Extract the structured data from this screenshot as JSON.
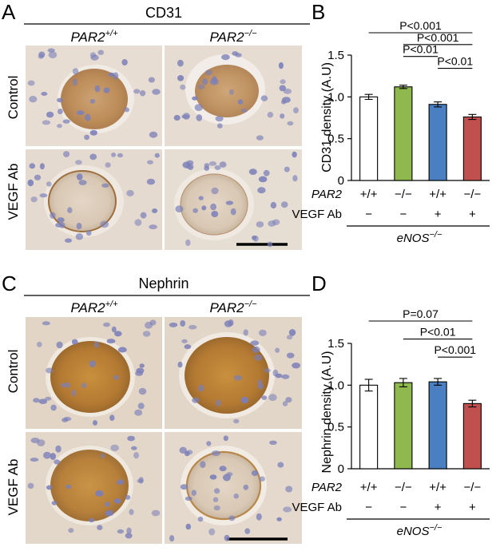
{
  "panel_letters": [
    "A",
    "B",
    "C",
    "D"
  ],
  "micrographs": {
    "panel_A": {
      "stain": "CD31",
      "genotypes": [
        {
          "base": "PAR2",
          "sup": "+/+"
        },
        {
          "base": "PAR2",
          "sup": "−/−"
        }
      ],
      "rows": [
        "Control",
        "VEGF Ab"
      ]
    },
    "panel_C": {
      "stain": "Nephrin",
      "genotypes": [
        {
          "base": "PAR2",
          "sup": "+/+"
        },
        {
          "base": "PAR2",
          "sup": "−/−"
        }
      ],
      "rows": [
        "Control",
        "VEGF Ab"
      ]
    }
  },
  "conditions": {
    "par2_label": "PAR2",
    "vegf_label": "VEGF Ab",
    "par2": [
      "+/+",
      "−/−",
      "+/+",
      "−/−"
    ],
    "vegf": [
      "−",
      "−",
      "+",
      "+"
    ],
    "background": {
      "base": "eNOS",
      "sup": "−/−"
    }
  },
  "colors": {
    "bars": [
      "#ffffff",
      "#8fb84e",
      "#4a7fc1",
      "#c0504d"
    ],
    "stain_brown": "#b8834a",
    "nuclei": "#7b7fb8",
    "tissue": "#e6dcd0"
  },
  "chart_data": [
    {
      "panel": "B",
      "type": "bar",
      "categories": [
        "+/+ −",
        "−/− −",
        "+/+ +",
        "−/− +"
      ],
      "values": [
        1.0,
        1.12,
        0.91,
        0.76
      ],
      "errors": [
        0.03,
        0.02,
        0.03,
        0.03
      ],
      "ylabel": "CD31 density (A.U)",
      "ylim": [
        0,
        1.5
      ],
      "yticks": [
        "0",
        "0.5",
        "1.0",
        "1.5"
      ],
      "comparisons": [
        {
          "from": 0,
          "to": 3,
          "label": "P<0.001"
        },
        {
          "from": 1,
          "to": 3,
          "label": "P<0.001"
        },
        {
          "from": 1,
          "to": 2,
          "label": "P<0.01"
        },
        {
          "from": 2,
          "to": 3,
          "label": "P<0.01"
        }
      ]
    },
    {
      "panel": "D",
      "type": "bar",
      "categories": [
        "+/+ −",
        "−/− −",
        "+/+ +",
        "−/− +"
      ],
      "values": [
        1.0,
        1.03,
        1.04,
        0.78
      ],
      "errors": [
        0.07,
        0.05,
        0.04,
        0.04
      ],
      "ylabel": "Nephrin density (A.U)",
      "ylim": [
        0,
        1.5
      ],
      "yticks": [
        "0",
        "0.5",
        "1.0",
        "1.5"
      ],
      "comparisons": [
        {
          "from": 0,
          "to": 3,
          "label": "P=0.07"
        },
        {
          "from": 1,
          "to": 3,
          "label": "P<0.01"
        },
        {
          "from": 2,
          "to": 3,
          "label": "P<0.001"
        }
      ]
    }
  ]
}
